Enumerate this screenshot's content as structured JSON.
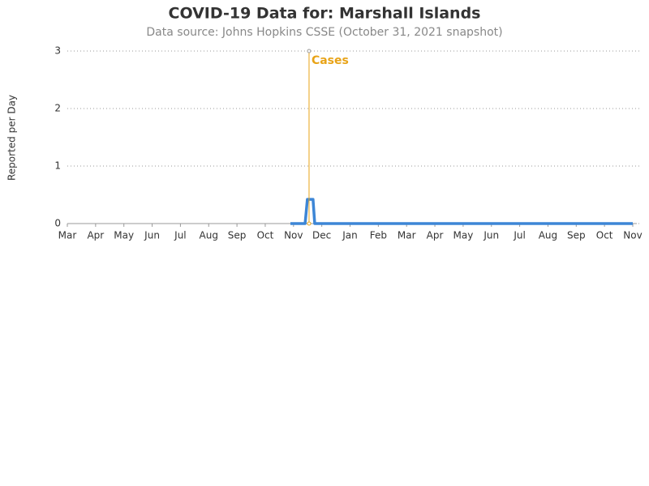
{
  "chart_data": {
    "type": "line",
    "title": "COVID-19 Data for: Marshall Islands",
    "subtitle": "Data source: Johns Hopkins CSSE (October 31, 2021 snapshot)",
    "y_label": "Reported per Day",
    "x": [
      7.89,
      8.41,
      8.49,
      8.69,
      8.75,
      20
    ],
    "series": [
      {
        "name": "Cases",
        "color": "#3d86d6",
        "values": [
          0,
          0,
          0.42,
          0.42,
          0,
          0
        ]
      }
    ],
    "annotation": {
      "text": "Cases",
      "x": 8.55,
      "y": 3,
      "color": "#e8a317"
    },
    "xlim": [
      0,
      20
    ],
    "xticks": [
      {
        "value": 0,
        "label": "Mar"
      },
      {
        "value": 1,
        "label": "Apr"
      },
      {
        "value": 2,
        "label": "May"
      },
      {
        "value": 3,
        "label": "Jun"
      },
      {
        "value": 4,
        "label": "Jul"
      },
      {
        "value": 5,
        "label": "Aug"
      },
      {
        "value": 6,
        "label": "Sep"
      },
      {
        "value": 7,
        "label": "Oct"
      },
      {
        "value": 8,
        "label": "Nov"
      },
      {
        "value": 9,
        "label": "Dec"
      },
      {
        "value": 10,
        "label": "Jan"
      },
      {
        "value": 11,
        "label": "Feb"
      },
      {
        "value": 12,
        "label": "Mar"
      },
      {
        "value": 13,
        "label": "Apr"
      },
      {
        "value": 14,
        "label": "May"
      },
      {
        "value": 15,
        "label": "Jun"
      },
      {
        "value": 16,
        "label": "Jul"
      },
      {
        "value": 17,
        "label": "Aug"
      },
      {
        "value": 18,
        "label": "Sep"
      },
      {
        "value": 19,
        "label": "Oct"
      },
      {
        "value": 20,
        "label": "Nov"
      }
    ],
    "ylim": [
      0,
      3
    ],
    "yticks": [
      0,
      1,
      2,
      3
    ],
    "grid": true
  }
}
